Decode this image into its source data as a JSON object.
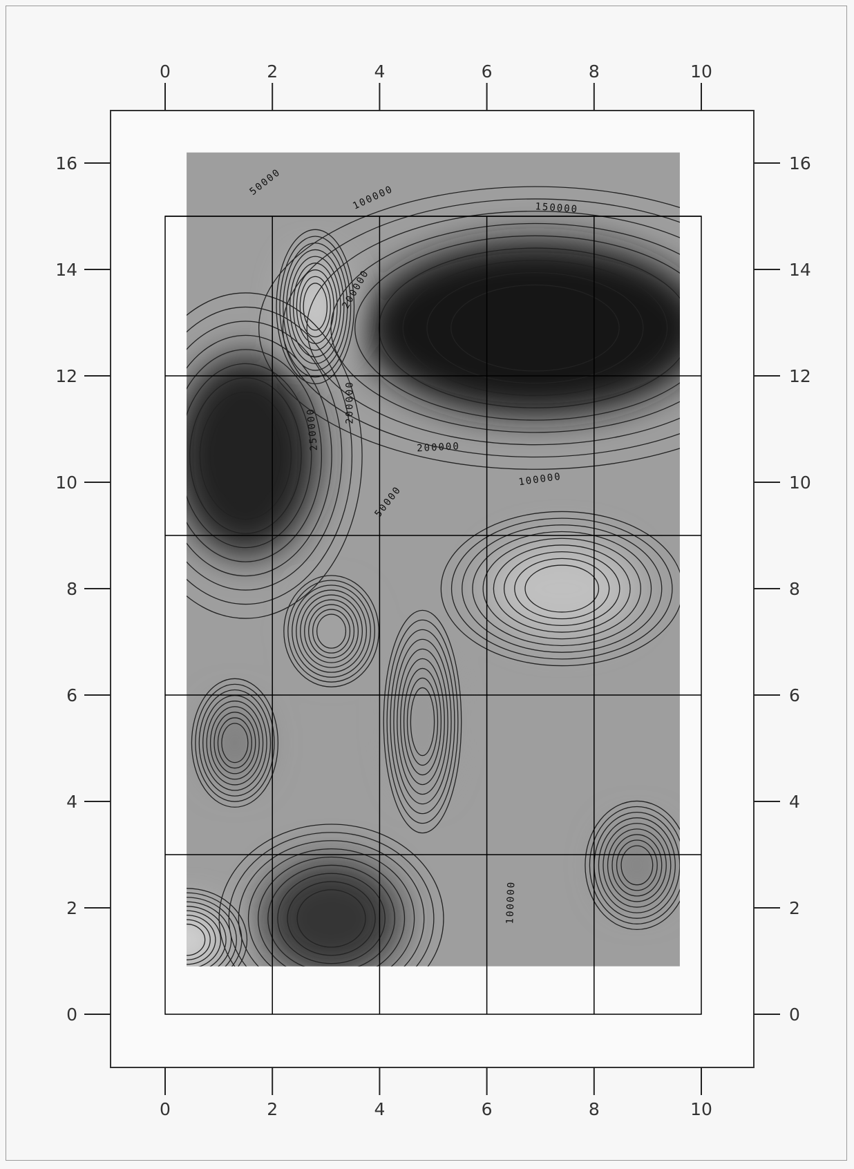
{
  "chart_data": {
    "type": "heatmap",
    "title": "",
    "xlabel": "",
    "ylabel": "",
    "xlim": [
      0,
      10
    ],
    "ylim": [
      0,
      16
    ],
    "x_ticks": [
      "0",
      "2",
      "4",
      "6",
      "8",
      "10"
    ],
    "y_ticks": [
      "0",
      "2",
      "4",
      "6",
      "8",
      "10",
      "12",
      "14",
      "16"
    ],
    "data_extent": {
      "x": [
        0.4,
        9.6
      ],
      "y": [
        0.9,
        16.2
      ]
    },
    "grid_lines": {
      "x": [
        2,
        4,
        6,
        8
      ],
      "y": [
        3,
        6,
        9,
        12,
        15
      ]
    },
    "colormap": "grayscale, darker = higher value",
    "contour_labels": [
      {
        "text": "50000",
        "x": 1.9,
        "y": 15.6,
        "angle": -38
      },
      {
        "text": "100000",
        "x": 3.9,
        "y": 15.3,
        "angle": -25
      },
      {
        "text": "150000",
        "x": 7.3,
        "y": 15.1,
        "angle": 4
      },
      {
        "text": "200000",
        "x": 3.6,
        "y": 13.6,
        "angle": -60
      },
      {
        "text": "200000",
        "x": 3.5,
        "y": 11.5,
        "angle": -90
      },
      {
        "text": "250000",
        "x": 2.8,
        "y": 11.0,
        "angle": -95
      },
      {
        "text": "200000",
        "x": 5.1,
        "y": 10.6,
        "angle": -3
      },
      {
        "text": "100000",
        "x": 7.0,
        "y": 10.0,
        "angle": -8
      },
      {
        "text": "50000",
        "x": 4.2,
        "y": 9.6,
        "angle": -52
      },
      {
        "text": "100000",
        "x": 6.5,
        "y": 2.1,
        "angle": -88
      }
    ],
    "regions": [
      {
        "x": 1.5,
        "y": 10.5,
        "rx": 1.35,
        "ry": 1.9,
        "value": 290000
      },
      {
        "x": 6.9,
        "y": 12.9,
        "rx": 3.2,
        "ry": 1.65,
        "value": 300000
      },
      {
        "x": 3.1,
        "y": 1.8,
        "rx": 1.3,
        "ry": 1.1,
        "value": 260000
      },
      {
        "x": 1.3,
        "y": 5.1,
        "rx": 0.5,
        "ry": 0.75,
        "value": 150000
      },
      {
        "x": 8.8,
        "y": 2.8,
        "rx": 0.6,
        "ry": 0.75,
        "value": 140000
      },
      {
        "x": 3.1,
        "y": 7.2,
        "rx": 0.55,
        "ry": 0.65,
        "value": 95000
      },
      {
        "x": 4.8,
        "y": 5.5,
        "rx": 0.45,
        "ry": 1.3,
        "value": 110000
      },
      {
        "x": 7.4,
        "y": 8.0,
        "rx": 1.4,
        "ry": 0.9,
        "value": 50000
      },
      {
        "x": 2.8,
        "y": 13.3,
        "rx": 0.45,
        "ry": 0.9,
        "value": 30000
      },
      {
        "x": 0.4,
        "y": 1.4,
        "rx": 0.7,
        "ry": 0.6,
        "value": 20000
      }
    ],
    "background_value": 100000
  }
}
